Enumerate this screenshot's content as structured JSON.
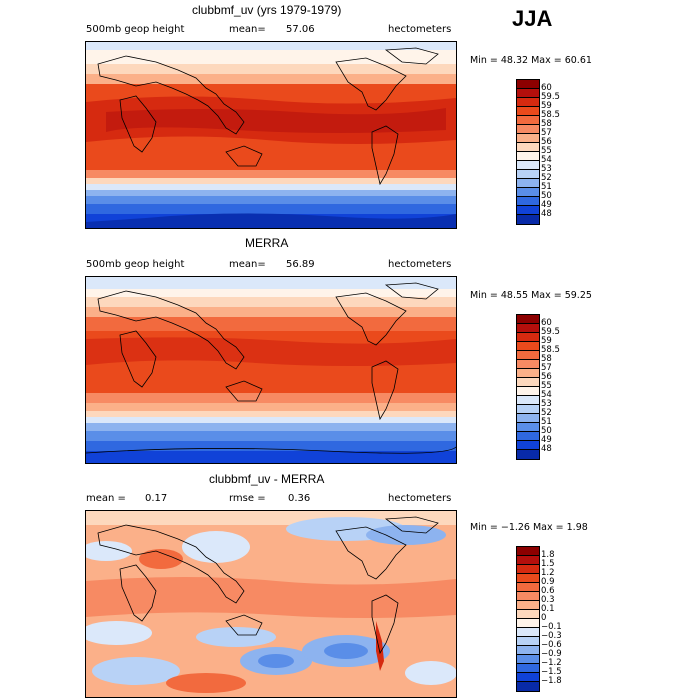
{
  "season": "JJA",
  "panels": [
    {
      "title": "clubbmf_uv (yrs 1979-1979)",
      "variable": "500mb geop height",
      "mean_label": "mean=",
      "mean_value": "57.06",
      "units": "hectometers",
      "minmax_text": "Min =  48.32 Max =  60.61",
      "colorbar": {
        "labels": [
          "60",
          "59.5",
          "59",
          "58.5",
          "58",
          "57",
          "56",
          "55",
          "54",
          "53",
          "52",
          "51",
          "50",
          "49",
          "48"
        ],
        "colors": [
          "#8c0000",
          "#b40f0c",
          "#d62a10",
          "#ea4a1c",
          "#f26a3e",
          "#f78a63",
          "#fbb089",
          "#fdd8bd",
          "#fff4ea",
          "#dbe8fa",
          "#b8d2f6",
          "#8db3ef",
          "#5a8ee8",
          "#2f68e0",
          "#1042d8",
          "#082aa8"
        ]
      }
    },
    {
      "title": "MERRA",
      "variable": "500mb geop height",
      "mean_label": "mean=",
      "mean_value": "56.89",
      "units": "hectometers",
      "minmax_text": "Min =  48.55 Max =  59.25",
      "colorbar": {
        "labels": [
          "60",
          "59.5",
          "59",
          "58.5",
          "58",
          "57",
          "56",
          "55",
          "54",
          "53",
          "52",
          "51",
          "50",
          "49",
          "48"
        ],
        "colors": [
          "#8c0000",
          "#b40f0c",
          "#d62a10",
          "#ea4a1c",
          "#f26a3e",
          "#f78a63",
          "#fbb089",
          "#fdd8bd",
          "#fff4ea",
          "#dbe8fa",
          "#b8d2f6",
          "#8db3ef",
          "#5a8ee8",
          "#2f68e0",
          "#1042d8",
          "#082aa8"
        ]
      }
    },
    {
      "title": "clubbmf_uv - MERRA",
      "stat1_label": "mean =",
      "stat1_value": "0.17",
      "stat2_label": "rmse =",
      "stat2_value": "0.36",
      "units": "hectometers",
      "minmax_text": "Min = −1.26 Max =   1.98",
      "colorbar": {
        "labels": [
          "1.8",
          "1.5",
          "1.2",
          "0.9",
          "0.6",
          "0.3",
          "0.1",
          "0",
          "−0.1",
          "−0.3",
          "−0.6",
          "−0.9",
          "−1.2",
          "−1.5",
          "−1.8"
        ],
        "colors": [
          "#8c0000",
          "#b40f0c",
          "#d62a10",
          "#ea4a1c",
          "#f26a3e",
          "#f78a63",
          "#fbb089",
          "#fdd8bd",
          "#fff4ea",
          "#dbe8fa",
          "#b8d2f6",
          "#8db3ef",
          "#5a8ee8",
          "#2f68e0",
          "#1042d8",
          "#082aa8"
        ]
      }
    }
  ]
}
